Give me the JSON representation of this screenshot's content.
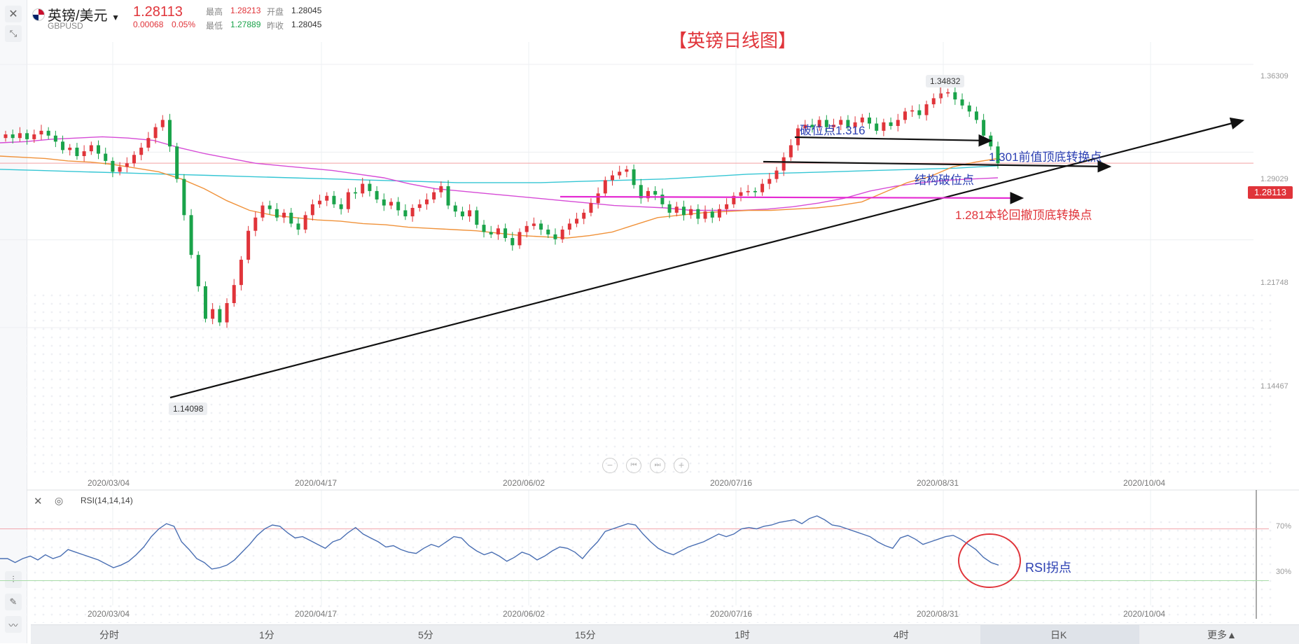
{
  "header": {
    "symbol_name": "英镑/美元",
    "symbol_code": "GBPUSD",
    "last_price": "1.28113",
    "change_abs": "0.00068",
    "change_pct": "0.05%",
    "high_label": "最高",
    "high_value": "1.28213",
    "low_label": "最低",
    "low_value": "1.27889",
    "open_label": "开盘",
    "open_value": "1.28045",
    "prev_close_label": "昨收",
    "prev_close_value": "1.28045"
  },
  "chart_title": "【英镑日线图】",
  "price_axis": {
    "ticks": [
      "1.36309",
      "1.29029",
      "1.21748",
      "1.14467"
    ],
    "current_tag": "1.28113"
  },
  "date_axis": {
    "ticks": [
      "2020/03/04",
      "2020/04/17",
      "2020/06/02",
      "2020/07/16",
      "2020/08/31",
      "2020/10/04"
    ]
  },
  "markers": {
    "high": "1.34832",
    "low": "1.14098"
  },
  "annotations": {
    "break_point": "破位点1.316",
    "prev_top_bottom": "1.301前值顶底转换点",
    "structure_break": "结构破位点",
    "pullback_top_bottom": "1.281本轮回撤顶底转换点",
    "rsi_turn": "RSI拐点"
  },
  "rsi_panel": {
    "label": "RSI(14,14,14)",
    "levels": [
      "70%",
      "30%"
    ]
  },
  "timeframes": [
    "分时",
    "1分",
    "5分",
    "15分",
    "1时",
    "4时",
    "日K",
    "更多▲"
  ],
  "icons": {
    "close": "close-icon",
    "draw": "pencil-icon",
    "zoom_out": "minus-circle-icon",
    "zoom_in": "plus-circle-icon"
  },
  "chart_data": {
    "type": "candlestick",
    "title": "【英镑日线图】",
    "ylim": [
      1.125,
      1.375
    ],
    "yticks": [
      1.36309,
      1.29029,
      1.21748,
      1.14467
    ],
    "x_ticks": [
      "2020/03/04",
      "2020/04/17",
      "2020/06/02",
      "2020/07/16",
      "2020/08/31",
      "2020/10/04"
    ],
    "close_series": [
      1.305,
      1.302,
      1.306,
      1.301,
      1.305,
      1.308,
      1.304,
      1.299,
      1.292,
      1.294,
      1.287,
      1.291,
      1.296,
      1.289,
      1.283,
      1.274,
      1.278,
      1.281,
      1.288,
      1.294,
      1.302,
      1.311,
      1.317,
      1.295,
      1.268,
      1.238,
      1.205,
      1.179,
      1.152,
      1.16,
      1.149,
      1.165,
      1.18,
      1.201,
      1.225,
      1.236,
      1.246,
      1.243,
      1.236,
      1.24,
      1.231,
      1.226,
      1.238,
      1.247,
      1.25,
      1.254,
      1.247,
      1.243,
      1.257,
      1.256,
      1.264,
      1.258,
      1.251,
      1.246,
      1.249,
      1.242,
      1.237,
      1.244,
      1.247,
      1.251,
      1.257,
      1.262,
      1.246,
      1.241,
      1.237,
      1.242,
      1.23,
      1.224,
      1.222,
      1.227,
      1.219,
      1.213,
      1.224,
      1.229,
      1.231,
      1.226,
      1.222,
      1.218,
      1.226,
      1.231,
      1.235,
      1.24,
      1.248,
      1.256,
      1.267,
      1.271,
      1.274,
      1.276,
      1.263,
      1.252,
      1.258,
      1.255,
      1.247,
      1.24,
      1.245,
      1.238,
      1.243,
      1.235,
      1.241,
      1.236,
      1.243,
      1.247,
      1.254,
      1.257,
      1.258,
      1.257,
      1.264,
      1.268,
      1.275,
      1.286,
      1.296,
      1.31,
      1.313,
      1.311,
      1.317,
      1.311,
      1.313,
      1.317,
      1.311,
      1.315,
      1.319,
      1.314,
      1.308,
      1.315,
      1.312,
      1.317,
      1.324,
      1.325,
      1.321,
      1.33,
      1.335,
      1.339,
      1.34,
      1.334,
      1.329,
      1.324,
      1.317,
      1.304,
      1.295,
      1.281
    ],
    "ma_orange": [
      1.287,
      1.286,
      1.285,
      1.283,
      1.282,
      1.28,
      1.277,
      1.274,
      1.268,
      1.26,
      1.25,
      1.242,
      1.238,
      1.236,
      1.234,
      1.233,
      1.231,
      1.23,
      1.228,
      1.227,
      1.226,
      1.225,
      1.223,
      1.221,
      1.22,
      1.219,
      1.221,
      1.224,
      1.23,
      1.236,
      1.238,
      1.24,
      1.241,
      1.242,
      1.242,
      1.243,
      1.244,
      1.246,
      1.249,
      1.257,
      1.265,
      1.27,
      1.278,
      1.282,
      1.285
    ],
    "ma_magenta": [
      1.298,
      1.299,
      1.301,
      1.302,
      1.303,
      1.302,
      1.3,
      1.294,
      1.289,
      1.285,
      1.281,
      1.279,
      1.277,
      1.275,
      1.272,
      1.269,
      1.264,
      1.26,
      1.258,
      1.256,
      1.254,
      1.252,
      1.25,
      1.248,
      1.246,
      1.245,
      1.244,
      1.242,
      1.242,
      1.242,
      1.243,
      1.245,
      1.248,
      1.252,
      1.258,
      1.262,
      1.265,
      1.267,
      1.268,
      1.269
    ],
    "ma_cyan": [
      1.276,
      1.275,
      1.274,
      1.273,
      1.272,
      1.271,
      1.27,
      1.269,
      1.268,
      1.267,
      1.266,
      1.265,
      1.265,
      1.265,
      1.266,
      1.267,
      1.268,
      1.27,
      1.272,
      1.273,
      1.274,
      1.275,
      1.276,
      1.277,
      1.279
    ],
    "high_marker": 1.34832,
    "low_marker": 1.14098,
    "rsi_levels": [
      70,
      30
    ],
    "rsi_values": [
      47,
      47,
      44,
      47,
      49,
      46,
      50,
      47,
      49,
      54,
      52,
      50,
      48,
      46,
      43,
      40,
      42,
      45,
      50,
      56,
      64,
      70,
      74,
      72,
      60,
      54,
      47,
      44,
      39,
      40,
      42,
      46,
      52,
      58,
      65,
      70,
      73,
      72,
      67,
      63,
      64,
      61,
      58,
      55,
      60,
      62,
      67,
      71,
      66,
      63,
      60,
      56,
      57,
      54,
      52,
      51,
      55,
      58,
      56,
      60,
      64,
      63,
      57,
      53,
      50,
      52,
      49,
      45,
      48,
      52,
      50,
      46,
      49,
      53,
      56,
      55,
      52,
      47,
      54,
      60,
      68,
      70,
      72,
      74,
      73,
      66,
      60,
      55,
      52,
      50,
      53,
      56,
      58,
      60,
      63,
      66,
      64,
      66,
      70,
      71,
      70,
      72,
      73,
      75,
      76,
      77,
      74,
      78,
      80,
      77,
      73,
      72,
      70,
      68,
      66,
      64,
      60,
      57,
      55,
      63,
      65,
      62,
      58,
      60,
      62,
      64,
      65,
      62,
      58,
      54,
      48,
      44,
      42
    ],
    "rsi_ylim": [
      0,
      100
    ]
  }
}
